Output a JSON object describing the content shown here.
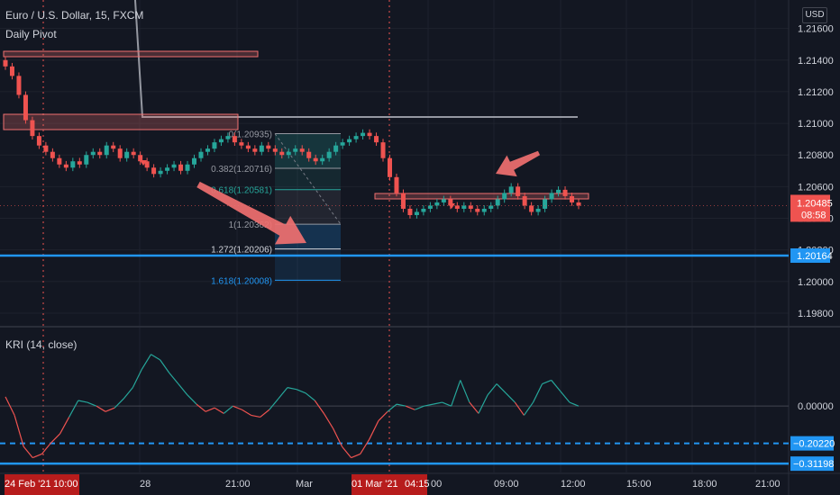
{
  "header": {
    "title": "Euro / U.S. Dollar, 15, FXCM",
    "subtitle": "Daily Pivot",
    "currency_button": "USD"
  },
  "price_axis": {
    "labels": [
      "1.21600",
      "1.21400",
      "1.21200",
      "1.21000",
      "1.20800",
      "1.20600",
      "1.20400",
      "1.20200",
      "1.20000",
      "1.19800"
    ],
    "ticks": [
      1.216,
      1.214,
      1.212,
      1.21,
      1.208,
      1.206,
      1.204,
      1.202,
      1.2,
      1.198
    ],
    "current_price": "1.20485",
    "countdown": "08:58",
    "level_label": "1.20164"
  },
  "fibonacci": {
    "levels": [
      {
        "label": "0(1.20935)",
        "value": 1.20935
      },
      {
        "label": "0.382(1.20716)",
        "value": 1.20716
      },
      {
        "label": "0.618(1.20581)",
        "value": 1.20581
      },
      {
        "label": "1(1.20362)",
        "value": 1.20362
      },
      {
        "label": "1.272(1.20206)",
        "value": 1.20206
      },
      {
        "label": "1.618(1.20008)",
        "value": 1.20008
      }
    ]
  },
  "indicator": {
    "title": "KRI (14, close)",
    "axis_labels": [
      "0.00000"
    ],
    "level1": "−0.20220",
    "level2": "−0.31198"
  },
  "time_axis": {
    "labels": [
      {
        "text": "24 Feb '21",
        "highlight": true
      },
      {
        "text": "10:00",
        "highlight": true
      },
      {
        "text": "28",
        "highlight": false
      },
      {
        "text": "21:00",
        "highlight": false
      },
      {
        "text": "Mar",
        "highlight": false
      },
      {
        "text": "01 Mar '21",
        "highlight": true
      },
      {
        "text": "04:15",
        "highlight": true
      },
      {
        "text": "00",
        "highlight": false
      },
      {
        "text": "09:00",
        "highlight": false
      },
      {
        "text": "12:00",
        "highlight": false
      },
      {
        "text": "15:00",
        "highlight": false
      },
      {
        "text": "18:00",
        "highlight": false
      },
      {
        "text": "21:00",
        "highlight": false
      }
    ]
  },
  "colors": {
    "background": "#131722",
    "up": "#26a69a",
    "down": "#ef5350",
    "blue_line": "#2196f3",
    "pink": "#f07070"
  },
  "chart_data": {
    "type": "line",
    "title": "Euro / U.S. Dollar, 15, FXCM",
    "price_range": [
      1.1972,
      1.2178
    ],
    "price_series": [
      1.2136,
      1.213,
      1.2118,
      1.2102,
      1.2092,
      1.2086,
      1.2082,
      1.2078,
      1.2074,
      1.2072,
      1.2076,
      1.2074,
      1.208,
      1.2082,
      1.208,
      1.2086,
      1.2084,
      1.2078,
      1.2082,
      1.208,
      1.2076,
      1.2072,
      1.2068,
      1.207,
      1.2072,
      1.2074,
      1.207,
      1.2074,
      1.2078,
      1.2082,
      1.2084,
      1.2088,
      1.209,
      1.2092,
      1.2088,
      1.2086,
      1.2084,
      1.2082,
      1.2086,
      1.2084,
      1.2082,
      1.208,
      1.2082,
      1.2084,
      1.2082,
      1.2078,
      1.2076,
      1.2078,
      1.2082,
      1.2086,
      1.2088,
      1.209,
      1.2092,
      1.2094,
      1.2092,
      1.2088,
      1.2078,
      1.2066,
      1.2056,
      1.2046,
      1.2042,
      1.2044,
      1.2046,
      1.2048,
      1.205,
      1.2052,
      1.2048,
      1.2046,
      1.2048,
      1.2046,
      1.2044,
      1.2046,
      1.2048,
      1.2052,
      1.2056,
      1.206,
      1.2054,
      1.2048,
      1.2044,
      1.2046,
      1.2052,
      1.2056,
      1.2058,
      1.2054,
      1.205,
      1.2048
    ],
    "kri_range": [
      -0.36,
      0.42
    ],
    "kri_series": [
      0.05,
      -0.05,
      -0.22,
      -0.28,
      -0.26,
      -0.2,
      -0.15,
      -0.06,
      0.03,
      0.02,
      0.0,
      -0.03,
      -0.01,
      0.04,
      0.1,
      0.2,
      0.28,
      0.25,
      0.18,
      0.12,
      0.06,
      0.01,
      -0.03,
      -0.01,
      -0.04,
      0.0,
      -0.02,
      -0.05,
      -0.06,
      -0.02,
      0.04,
      0.1,
      0.09,
      0.07,
      0.03,
      -0.04,
      -0.12,
      -0.22,
      -0.28,
      -0.26,
      -0.18,
      -0.08,
      -0.03,
      0.01,
      0.0,
      -0.02,
      0.0,
      0.01,
      0.02,
      0.0,
      0.14,
      0.02,
      -0.04,
      0.06,
      0.12,
      0.07,
      0.02,
      -0.05,
      0.02,
      0.12,
      0.14,
      0.08,
      0.02,
      0.0
    ],
    "kri_levels": [
      0.0,
      -0.2022,
      -0.31198
    ],
    "horizontal_levels": [
      1.20164
    ]
  }
}
